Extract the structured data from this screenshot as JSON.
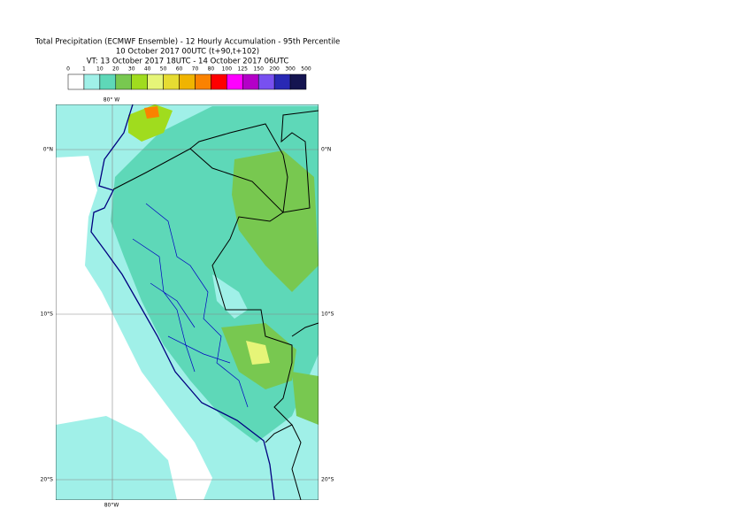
{
  "header": {
    "title": "Total Precipitation (ECMWF Ensemble) - 12 Hourly Accumulation - 95th Percentile",
    "subtitle": "10 October 2017 00UTC (t+90,t+102)",
    "valid_time": "VT: 13 October 2017 18UTC - 14 October 2017 06UTC"
  },
  "legend": {
    "labels": [
      0,
      1,
      10,
      20,
      30,
      40,
      50,
      60,
      70,
      80,
      100,
      125,
      150,
      200,
      300,
      500
    ],
    "colors": [
      "#ffffff",
      "#a0f0e8",
      "#5ed8b8",
      "#78c850",
      "#a0dc1e",
      "#e6f578",
      "#e6dc32",
      "#f0b400",
      "#fa8200",
      "#ff0000",
      "#ff00ff",
      "#b400c8",
      "#7850f0",
      "#2828b4",
      "#141450"
    ]
  },
  "map": {
    "top_label": "80° W",
    "bottom_label": "80°W",
    "left_labels": [
      "0°N",
      "10°S",
      "20°S"
    ],
    "right_labels": [
      "0°N",
      "10°S",
      "20°S"
    ]
  }
}
